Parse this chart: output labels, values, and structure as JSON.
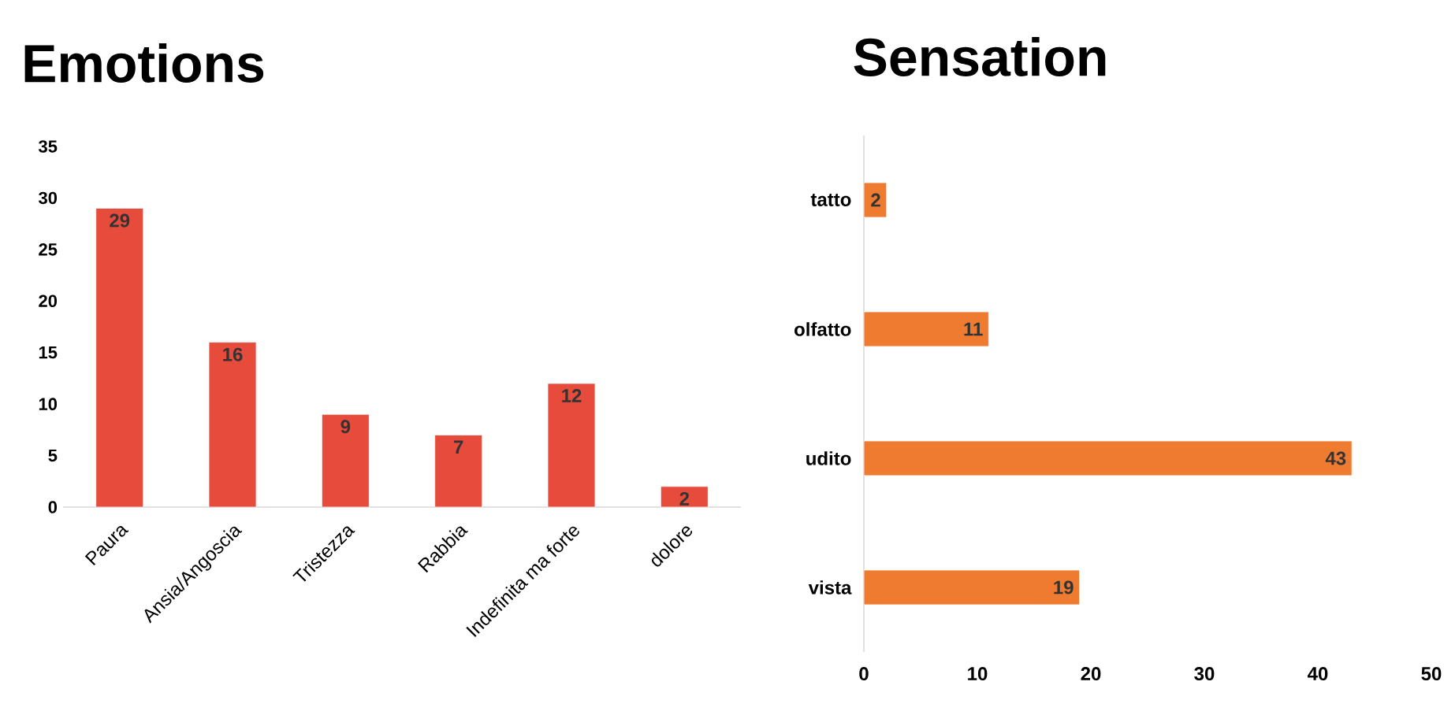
{
  "chart_data": [
    {
      "type": "bar",
      "title": "Emotions",
      "categories": [
        "Paura",
        "Ansia/Angoscia",
        "Tristezza",
        "Rabbia",
        "Indefinita ma forte",
        "dolore"
      ],
      "values": [
        29,
        16,
        9,
        7,
        12,
        2
      ],
      "color": "#e64b3b",
      "ylim": [
        0,
        35
      ],
      "yticks": [
        0,
        5,
        10,
        15,
        20,
        25,
        30,
        35
      ],
      "data_labels": true
    },
    {
      "type": "bar",
      "orientation": "horizontal",
      "title": "Sensation",
      "categories": [
        "tatto",
        "olfatto",
        "udito",
        "vista"
      ],
      "values": [
        2,
        11,
        43,
        19
      ],
      "color": "#ef7b31",
      "xlim": [
        0,
        50
      ],
      "xticks": [
        0,
        10,
        20,
        30,
        40,
        50
      ],
      "data_labels": true
    }
  ]
}
